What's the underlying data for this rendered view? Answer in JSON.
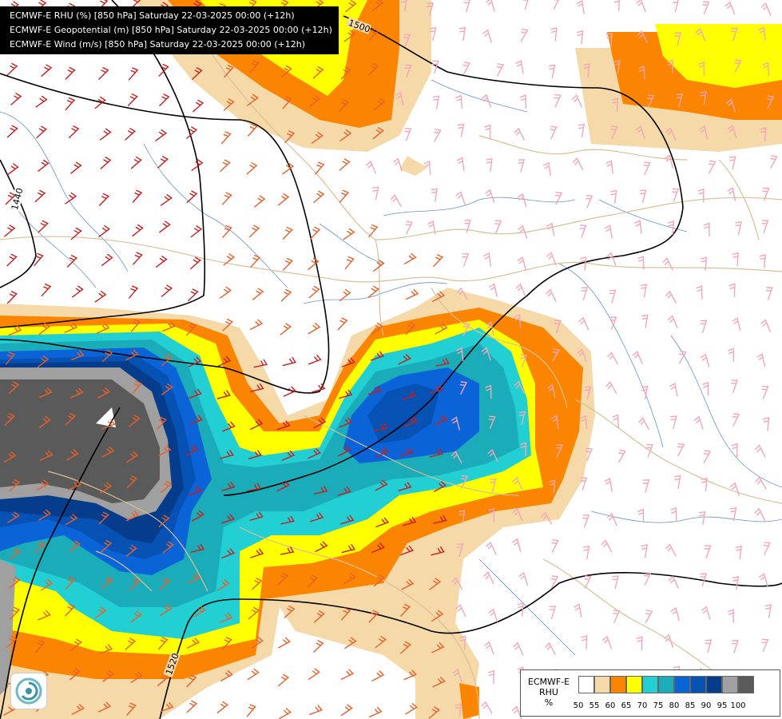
{
  "header": {
    "lines": [
      "ECMWF-E RHU (%) [850 hPa] Saturday 22-03-2025 00:00 (+12h)",
      "ECMWF-E Geopotential (m) [850 hPa] Saturday 22-03-2025 00:00 (+12h)",
      "ECMWF-E Wind (m/s) [850 hPa] Saturday 22-03-2025 00:00 (+12h)"
    ]
  },
  "contours": {
    "labels": [
      "1500",
      "1520",
      "1440",
      "1500"
    ]
  },
  "legend": {
    "title_lines": [
      "ECMWF-E",
      "RHU",
      "%"
    ],
    "colors": [
      "#ffffff",
      "#f5d9a8",
      "#fb8500",
      "#ffff00",
      "#22cfd3",
      "#1aacb8",
      "#0a64d8",
      "#0552b4",
      "#063c8c",
      "#a0a0a0",
      "#5a5a5a"
    ],
    "ticks": [
      "50",
      "55",
      "60",
      "65",
      "70",
      "75",
      "80",
      "85",
      "90",
      "95",
      "100"
    ]
  },
  "logo": {
    "icon": "swirl-logo-icon"
  }
}
